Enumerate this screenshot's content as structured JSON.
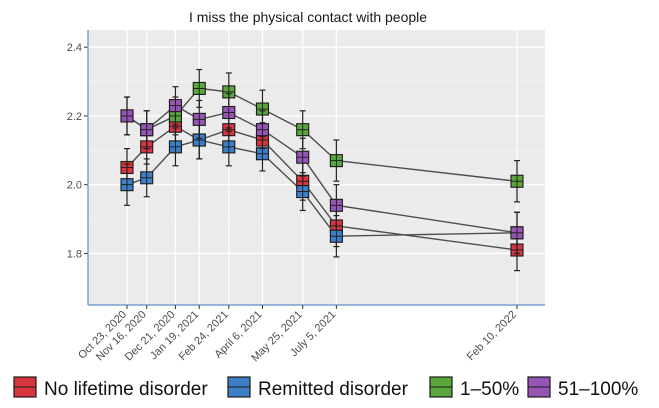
{
  "chart_data": {
    "type": "line",
    "title": "I miss the physical contact with people",
    "xlabel": "",
    "ylabel": "",
    "x": [
      "Oct 23, 2020",
      "Nov 16, 2020",
      "Dec 21, 2020",
      "Jan 19, 2021",
      "Feb 24, 2021",
      "April 6, 2021",
      "May 25, 2021",
      "July 5, 2021",
      "Feb 10, 2022"
    ],
    "ylim": [
      1.65,
      2.45
    ],
    "yticks": [
      1.8,
      2.0,
      2.2,
      2.4
    ],
    "grid": true,
    "legend_position": "bottom",
    "error_bars": true,
    "series": [
      {
        "name": "No lifetime disorder",
        "color": "#d9353f",
        "values": [
          2.05,
          2.11,
          2.17,
          2.13,
          2.16,
          2.13,
          2.01,
          1.88,
          1.81
        ],
        "err": [
          0.055,
          0.05,
          0.05,
          0.055,
          0.05,
          0.05,
          0.055,
          0.06,
          0.06
        ]
      },
      {
        "name": "Remitted disorder",
        "color": "#3d7fc7",
        "values": [
          2.0,
          2.02,
          2.11,
          2.13,
          2.11,
          2.09,
          1.98,
          1.85,
          1.86
        ],
        "err": [
          0.06,
          0.055,
          0.055,
          0.055,
          0.055,
          0.05,
          0.055,
          0.06,
          0.06
        ]
      },
      {
        "name": "1–50%",
        "color": "#5aa63c",
        "values": [
          2.2,
          2.16,
          2.2,
          2.28,
          2.27,
          2.22,
          2.16,
          2.07,
          2.01
        ],
        "err": [
          0.055,
          0.055,
          0.055,
          0.055,
          0.055,
          0.055,
          0.055,
          0.06,
          0.06
        ]
      },
      {
        "name": "51–100%",
        "color": "#9655b5",
        "values": [
          2.2,
          2.16,
          2.23,
          2.19,
          2.21,
          2.16,
          2.08,
          1.94,
          1.86
        ],
        "err": [
          0.055,
          0.055,
          0.055,
          0.055,
          0.055,
          0.055,
          0.055,
          0.06,
          0.06
        ]
      }
    ]
  }
}
